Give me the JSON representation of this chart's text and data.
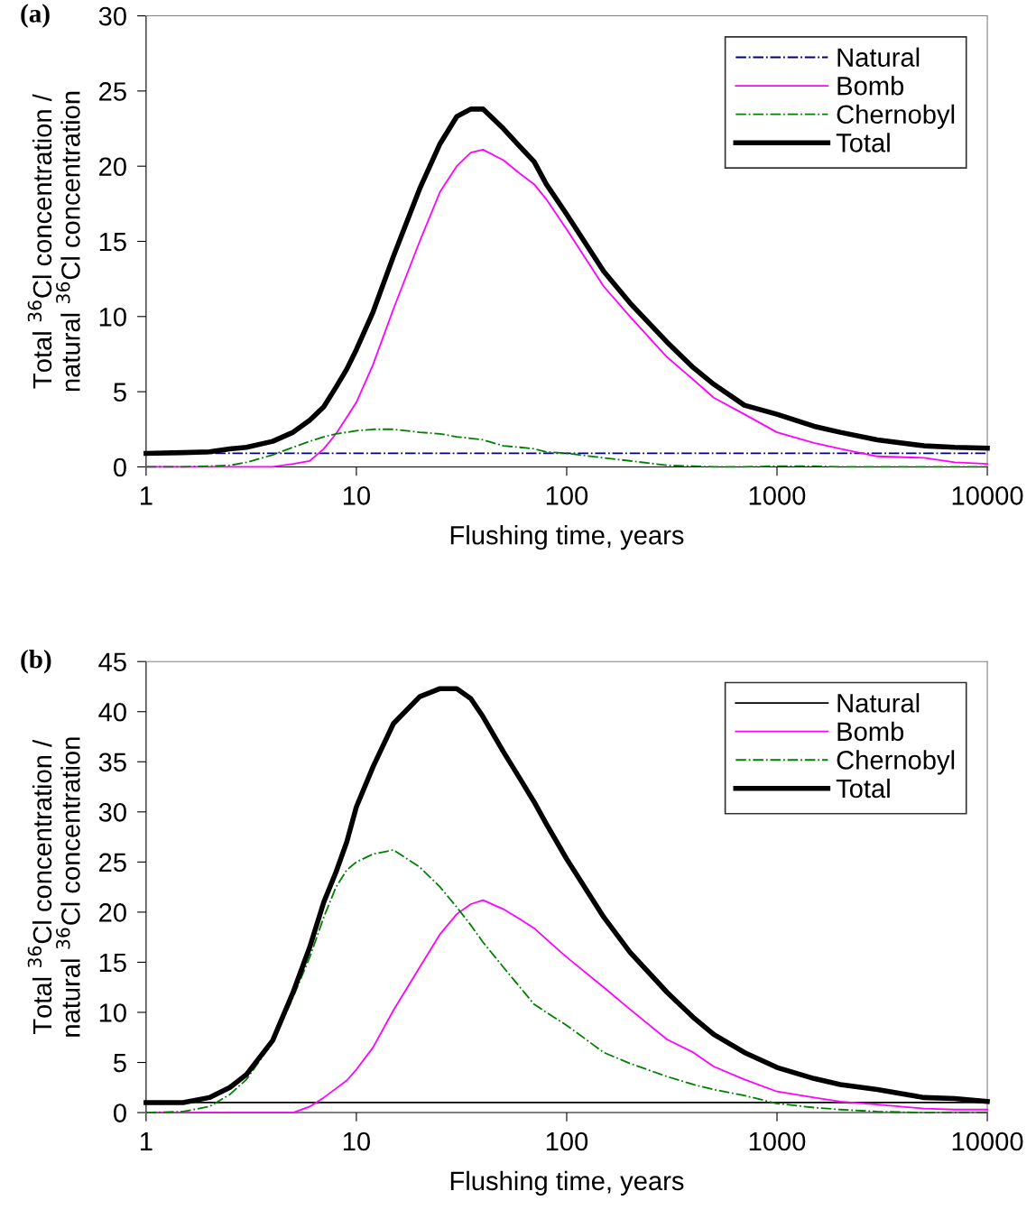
{
  "chart_data": [
    {
      "type": "line",
      "annotations": [
        "(a)"
      ],
      "xlabel": "Flushing time, years",
      "ylabel": "Total $^{36}$Cl concentration /\nnatural $^{36}$Cl concentration",
      "log": "x",
      "xlim": [
        1,
        10000
      ],
      "xticks": [
        1,
        10,
        100,
        1000,
        10000
      ],
      "ylim": [
        0,
        30
      ],
      "yticks": [
        0,
        5,
        10,
        15,
        20,
        25,
        30
      ],
      "grid": false,
      "legend": "top right",
      "marker": "none",
      "x": [
        1,
        1.5,
        2,
        2.5,
        3,
        4,
        5,
        6,
        7,
        8,
        9,
        10,
        12,
        15,
        20,
        25,
        30,
        35,
        40,
        50,
        60,
        70,
        80,
        100,
        150,
        200,
        300,
        400,
        500,
        700,
        1000,
        1500,
        2000,
        3000,
        5000,
        7000,
        10000
      ],
      "series": [
        {
          "name": "Natural",
          "color": "#000080",
          "line_style": "dashdot",
          "values": [
            0.9,
            0.9,
            0.9,
            0.9,
            0.9,
            0.9,
            0.9,
            0.9,
            0.9,
            0.9,
            0.9,
            0.9,
            0.9,
            0.9,
            0.9,
            0.9,
            0.9,
            0.9,
            0.9,
            0.9,
            0.9,
            0.9,
            0.9,
            0.9,
            0.9,
            0.9,
            0.9,
            0.9,
            0.9,
            0.9,
            0.9,
            0.9,
            0.9,
            0.9,
            0.9,
            0.9,
            0.9
          ]
        },
        {
          "name": "Bomb",
          "color": "#ff00ff",
          "line_style": "solid",
          "values": [
            0,
            0,
            0,
            0,
            0,
            0,
            0.2,
            0.4,
            1.2,
            2.2,
            3.3,
            4.3,
            6.8,
            10.5,
            15.0,
            18.3,
            20.0,
            20.9,
            21.1,
            20.4,
            19.5,
            18.8,
            17.8,
            15.8,
            12.0,
            10.0,
            7.3,
            5.8,
            4.6,
            3.5,
            2.3,
            1.6,
            1.2,
            0.7,
            0.6,
            0.3,
            0.2
          ]
        },
        {
          "name": "Chernobyl",
          "color": "#008000",
          "line_style": "dashdot",
          "values": [
            0,
            0,
            0.05,
            0.1,
            0.3,
            0.8,
            1.3,
            1.7,
            2.0,
            2.2,
            2.3,
            2.4,
            2.5,
            2.5,
            2.3,
            2.2,
            2.0,
            1.9,
            1.8,
            1.4,
            1.3,
            1.2,
            1.0,
            0.9,
            0.6,
            0.4,
            0.1,
            0.05,
            0,
            0,
            0.05,
            0.05,
            0,
            0,
            0,
            0,
            0
          ]
        },
        {
          "name": "Total",
          "color": "#000000",
          "line_style": "solid",
          "values": [
            0.9,
            0.95,
            1.0,
            1.2,
            1.3,
            1.7,
            2.3,
            3.1,
            4.0,
            5.3,
            6.5,
            7.8,
            10.3,
            14,
            18.5,
            21.5,
            23.3,
            23.8,
            23.8,
            22.5,
            21.3,
            20.3,
            18.8,
            16.8,
            13.0,
            10.9,
            8.3,
            6.6,
            5.5,
            4.1,
            3.5,
            2.7,
            2.3,
            1.8,
            1.4,
            1.3,
            1.25
          ]
        }
      ]
    },
    {
      "type": "line",
      "annotations": [
        "(b)"
      ],
      "xlabel": "Flushing time, years",
      "ylabel": "Total $^{36}$Cl concentration /\nnatural $^{36}$Cl concentration",
      "log": "x",
      "xlim": [
        1,
        10000
      ],
      "xticks": [
        1,
        10,
        100,
        1000,
        10000
      ],
      "ylim": [
        0,
        45
      ],
      "yticks": [
        0,
        5,
        10,
        15,
        20,
        25,
        30,
        35,
        40,
        45
      ],
      "grid": false,
      "legend": "top right",
      "marker": "none",
      "x": [
        1,
        1.5,
        2,
        2.5,
        3,
        4,
        5,
        6,
        7,
        8,
        9,
        10,
        12,
        15,
        20,
        25,
        30,
        35,
        40,
        50,
        60,
        70,
        80,
        100,
        150,
        200,
        300,
        400,
        500,
        700,
        1000,
        1500,
        2000,
        3000,
        5000,
        7000,
        10000
      ],
      "series": [
        {
          "name": "Natural",
          "color": "#000000",
          "line_style": "solid",
          "values": [
            1.0,
            1.0,
            1.0,
            1.0,
            1.0,
            1.0,
            1.0,
            1.0,
            1.0,
            1.0,
            1.0,
            1.0,
            1.0,
            1.0,
            1.0,
            1.0,
            1.0,
            1.0,
            1.0,
            1.0,
            1.0,
            1.0,
            1.0,
            1.0,
            1.0,
            1.0,
            1.0,
            1.0,
            1.0,
            1.0,
            1.0,
            1.0,
            1.0,
            1.0,
            1.0,
            1.0,
            1.0
          ]
        },
        {
          "name": "Bomb",
          "color": "#ff00ff",
          "line_style": "solid",
          "values": [
            0,
            0,
            0,
            0,
            0,
            0,
            0,
            0.6,
            1.5,
            2.4,
            3.2,
            4.3,
            6.5,
            10.2,
            14.5,
            17.8,
            19.8,
            20.8,
            21.2,
            20.3,
            19.3,
            18.4,
            17.3,
            15.5,
            12.5,
            10.3,
            7.3,
            6.0,
            4.6,
            3.3,
            2.1,
            1.5,
            1.1,
            0.8,
            0.4,
            0.3,
            0.3
          ]
        },
        {
          "name": "Chernobyl",
          "color": "#008000",
          "line_style": "dashdot",
          "values": [
            0,
            0.1,
            0.6,
            1.8,
            3.3,
            7,
            11.5,
            15.5,
            19.5,
            22.5,
            24.2,
            25,
            25.8,
            26.2,
            24.5,
            22.5,
            20.5,
            18.7,
            17,
            14.5,
            12.5,
            10.8,
            10,
            8.7,
            6,
            4.9,
            3.6,
            2.8,
            2.3,
            1.7,
            0.9,
            0.5,
            0.3,
            0.1,
            0,
            0,
            0
          ]
        },
        {
          "name": "Total",
          "color": "#000000",
          "line_style": "solid",
          "values": [
            1.0,
            1.0,
            1.5,
            2.5,
            3.8,
            7.2,
            12,
            16.5,
            21,
            24,
            27,
            30.5,
            34.5,
            38.8,
            41.5,
            42.3,
            42.3,
            41.3,
            39.5,
            36,
            33.3,
            31,
            28.8,
            25.3,
            19.5,
            16,
            12,
            9.5,
            7.8,
            6.0,
            4.5,
            3.4,
            2.8,
            2.3,
            1.5,
            1.4,
            1.1
          ]
        }
      ]
    }
  ]
}
